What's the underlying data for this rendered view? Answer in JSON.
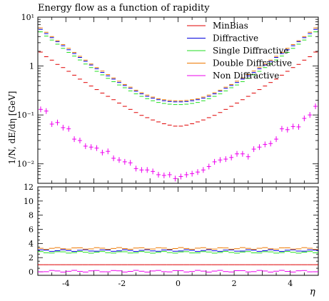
{
  "chart_data": [
    {
      "type": "line",
      "title": "Energy flow as a function of rapidity",
      "ylabel": "1/N dE/dη [GeV]",
      "xlabel": "η",
      "xlim": [
        -5,
        5
      ],
      "ylim": [
        0.004,
        10
      ],
      "yscale": "log",
      "y_ticks": [
        "10⁻²",
        "10⁻¹",
        "1",
        "10¹"
      ],
      "legend_position": "top-right",
      "x": [
        -4.9,
        -4.7,
        -4.5,
        -4.3,
        -4.1,
        -3.9,
        -3.7,
        -3.5,
        -3.3,
        -3.1,
        -2.9,
        -2.7,
        -2.5,
        -2.3,
        -2.1,
        -1.9,
        -1.7,
        -1.5,
        -1.3,
        -1.1,
        -0.9,
        -0.7,
        -0.5,
        -0.3,
        -0.1,
        0.1,
        0.3,
        0.5,
        0.7,
        0.9,
        1.1,
        1.3,
        1.5,
        1.7,
        1.9,
        2.1,
        2.3,
        2.5,
        2.7,
        2.9,
        3.1,
        3.3,
        3.5,
        3.7,
        3.9,
        4.1,
        4.3,
        4.5,
        4.7,
        4.9
      ],
      "series": [
        {
          "name": "MinBias",
          "color": "#e00000",
          "values": [
            1.93,
            1.55,
            1.32,
            1.08,
            0.93,
            0.78,
            0.65,
            0.54,
            0.46,
            0.39,
            0.33,
            0.28,
            0.24,
            0.205,
            0.175,
            0.15,
            0.13,
            0.112,
            0.098,
            0.088,
            0.079,
            0.072,
            0.066,
            0.062,
            0.059,
            0.059,
            0.062,
            0.066,
            0.072,
            0.079,
            0.088,
            0.098,
            0.112,
            0.13,
            0.15,
            0.175,
            0.205,
            0.24,
            0.28,
            0.33,
            0.39,
            0.46,
            0.54,
            0.65,
            0.78,
            0.93,
            1.08,
            1.32,
            1.55,
            1.93
          ]
        },
        {
          "name": "Diffractive",
          "color": "#0000dd",
          "values": [
            5.6,
            4.6,
            3.8,
            3.15,
            2.6,
            2.15,
            1.8,
            1.5,
            1.25,
            1.05,
            0.88,
            0.74,
            0.63,
            0.54,
            0.46,
            0.4,
            0.35,
            0.305,
            0.27,
            0.24,
            0.22,
            0.205,
            0.195,
            0.188,
            0.185,
            0.185,
            0.188,
            0.195,
            0.205,
            0.22,
            0.24,
            0.27,
            0.305,
            0.35,
            0.4,
            0.46,
            0.54,
            0.63,
            0.74,
            0.88,
            1.05,
            1.25,
            1.5,
            1.8,
            2.15,
            2.6,
            3.15,
            3.8,
            4.6,
            5.6
          ]
        },
        {
          "name": "Single Diffractive",
          "color": "#22dd22",
          "values": [
            5.0,
            4.1,
            3.4,
            2.8,
            2.3,
            1.9,
            1.6,
            1.33,
            1.1,
            0.93,
            0.78,
            0.66,
            0.56,
            0.48,
            0.41,
            0.36,
            0.31,
            0.27,
            0.24,
            0.215,
            0.195,
            0.18,
            0.172,
            0.166,
            0.163,
            0.163,
            0.166,
            0.172,
            0.18,
            0.195,
            0.215,
            0.24,
            0.27,
            0.31,
            0.36,
            0.41,
            0.48,
            0.56,
            0.66,
            0.78,
            0.93,
            1.1,
            1.33,
            1.6,
            1.9,
            2.3,
            2.8,
            3.4,
            4.1,
            5.0
          ]
        },
        {
          "name": "Double Diffractive",
          "color": "#ee7700",
          "values": [
            6.0,
            4.9,
            4.0,
            3.3,
            2.75,
            2.3,
            1.9,
            1.58,
            1.32,
            1.1,
            0.93,
            0.79,
            0.67,
            0.57,
            0.49,
            0.42,
            0.37,
            0.32,
            0.285,
            0.255,
            0.232,
            0.215,
            0.205,
            0.198,
            0.195,
            0.195,
            0.198,
            0.205,
            0.215,
            0.232,
            0.255,
            0.285,
            0.32,
            0.37,
            0.42,
            0.49,
            0.57,
            0.67,
            0.79,
            0.93,
            1.1,
            1.32,
            1.58,
            1.9,
            2.3,
            2.75,
            3.3,
            4.0,
            4.9,
            6.0
          ]
        },
        {
          "name": "Non Diffractive",
          "color": "#ee00ee",
          "values": [
            0.13,
            0.12,
            0.065,
            0.07,
            0.055,
            0.052,
            0.032,
            0.03,
            0.023,
            0.022,
            0.021,
            0.017,
            0.018,
            0.013,
            0.012,
            0.011,
            0.0105,
            0.008,
            0.0075,
            0.0075,
            0.007,
            0.006,
            0.0058,
            0.006,
            0.005,
            0.0055,
            0.006,
            0.0063,
            0.0068,
            0.0075,
            0.0088,
            0.011,
            0.012,
            0.0125,
            0.0135,
            0.016,
            0.016,
            0.014,
            0.02,
            0.022,
            0.025,
            0.026,
            0.032,
            0.052,
            0.05,
            0.058,
            0.057,
            0.085,
            0.1,
            0.15
          ]
        }
      ]
    },
    {
      "type": "line",
      "xlabel": "η",
      "xlim": [
        -5,
        5
      ],
      "ylim": [
        -0.5,
        12
      ],
      "x_ticks": [
        "-4",
        "-2",
        "0",
        "2",
        "4"
      ],
      "y_ticks": [
        "0",
        "2",
        "4",
        "6",
        "8",
        "10",
        "12"
      ],
      "series": [
        {
          "name": "MinBias",
          "color": "#e00000",
          "values": "flat",
          "level": 1.0
        },
        {
          "name": "Diffractive",
          "color": "#0000dd",
          "level": 3.0
        },
        {
          "name": "Single Diffractive",
          "color": "#22dd22",
          "level": 2.75
        },
        {
          "name": "Double Diffractive",
          "color": "#ee7700",
          "level": 3.3
        },
        {
          "name": "Non Diffractive",
          "color": "#ee00ee",
          "level": 0.08
        }
      ]
    }
  ],
  "legend": [
    "MinBias",
    "Diffractive",
    "Single Diffractive",
    "Double Diffractive",
    "Non Diffractive"
  ],
  "title": "Energy flow as a function of rapidity",
  "ylabel_text": "1/N, dE/dη [GeV]",
  "xlabel_text": "η"
}
